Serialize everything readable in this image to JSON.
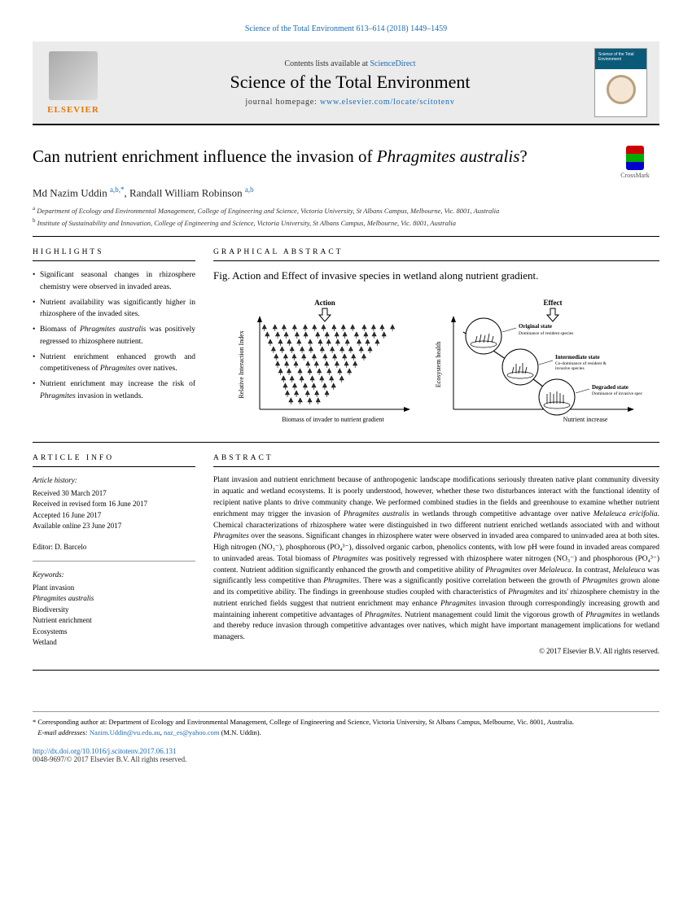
{
  "citation": "Science of the Total Environment 613–614 (2018) 1449–1459",
  "header": {
    "publisher_logo_text": "ELSEVIER",
    "contents_prefix": "Contents lists available at ",
    "contents_link": "ScienceDirect",
    "journal_name": "Science of the Total Environment",
    "homepage_prefix": "journal homepage: ",
    "homepage_url": "www.elsevier.com/locate/scitotenv",
    "cover_label": "Science of the Total Environment"
  },
  "title": {
    "pre": "Can nutrient enrichment influence the invasion of ",
    "species": "Phragmites australis",
    "post": "?"
  },
  "crossmark_label": "CrossMark",
  "authors": {
    "a1_name": "Md Nazim Uddin ",
    "a1_sup": "a,b,*",
    "sep": ", ",
    "a2_name": "Randall William Robinson ",
    "a2_sup": "a,b"
  },
  "affiliations": {
    "a": "Department of Ecology and Environmental Management, College of Engineering and Science, Victoria University, St Albans Campus, Melbourne, Vic. 8001, Australia",
    "b": "Institute of Sustainability and Innovation, College of Engineering and Science, Victoria University, St Albans Campus, Melbourne, Vic. 8001, Australia"
  },
  "sections": {
    "highlights": "HIGHLIGHTS",
    "graphical_abstract": "GRAPHICAL ABSTRACT",
    "article_info": "ARTICLE INFO",
    "abstract": "ABSTRACT"
  },
  "highlights": [
    "Significant seasonal changes in rhizosphere chemistry were observed in invaded areas.",
    "Nutrient availability was significantly higher in rhizosphere of the invaded sites.",
    "Biomass of <em>Phragmites australis</em> was positively regressed to rhizosphere nutrient.",
    "Nutrient enrichment enhanced growth and competitiveness of <em>Phragmites</em> over natives.",
    "Nutrient enrichment may increase the risk of <em>Phragmites</em> invasion in wetlands."
  ],
  "graphical_abstract": {
    "caption": "Fig. Action and Effect of invasive species in wetland along nutrient gradient.",
    "left_axis_y": "Relative Interaction Index",
    "left_axis_x": "Biomass of invader to nutrient gradient",
    "left_top_label": "Action",
    "right_top_label": "Effect",
    "right_axis_y": "Ecosystem health",
    "right_axis_x": "Nutrient increase",
    "state1_title": "Original state",
    "state1_sub": "Dominance of resident species",
    "state2_title": "Intermediate state",
    "state2_sub": "Co-dominance of resident & invasive species",
    "state3_title": "Degraded state",
    "state3_sub": "Dominance of invasive species"
  },
  "article_info": {
    "history_label": "Article history:",
    "received": "Received 30 March 2017",
    "revised": "Received in revised form 16 June 2017",
    "accepted": "Accepted 16 June 2017",
    "online": "Available online 23 June 2017",
    "editor_label": "Editor: ",
    "editor": "D. Barcelo",
    "keywords_label": "Keywords:",
    "keywords": [
      "Plant invasion",
      "Phragmites australis",
      "Biodiversity",
      "Nutrient enrichment",
      "Ecosystems",
      "Wetland"
    ]
  },
  "abstract": "Plant invasion and nutrient enrichment because of anthropogenic landscape modifications seriously threaten native plant community diversity in aquatic and wetland ecosystems. It is poorly understood, however, whether these two disturbances interact with the functional identity of recipient native plants to drive community change. We performed combined studies in the fields and greenhouse to examine whether nutrient enrichment may trigger the invasion of <em>Phragmites australis</em> in wetlands through competitive advantage over native <em>Melaleuca ericifolia</em>. Chemical characterizations of rhizosphere water were distinguished in two different nutrient enriched wetlands associated with and without <em>Phragmites</em> over the seasons. Significant changes in rhizosphere water were observed in invaded area compared to uninvaded area at both sites. High nitrogen (NO₃⁻), phosphorous (PO₄³⁻), dissolved organic carbon, phenolics contents, with low pH were found in invaded areas compared to uninvaded areas. Total biomass of <em>Phragmites</em> was positively regressed with rhizosphere water nitrogen (NO₃⁻) and phosphorous (PO₄³⁻) content. Nutrient addition significantly enhanced the growth and competitive ability of <em>Phragmites</em> over <em>Melaleuca</em>. In contrast, <em>Melaleuca</em> was significantly less competitive than <em>Phragmites</em>. There was a significantly positive correlation between the growth of <em>Phragmites</em> grown alone and its competitive ability. The findings in greenhouse studies coupled with characteristics of <em>Phragmites</em> and its' rhizosphere chemistry in the nutrient enriched fields suggest that nutrient enrichment may enhance <em>Phragmites</em> invasion through correspondingly increasing growth and maintaining inherent competitive advantages of <em>Phragmites</em>. Nutrient management could limit the vigorous growth of <em>Phragmites</em> in wetlands and thereby reduce invasion through competitive advantages over natives, which might have important management implications for wetland managers.",
  "copyright": "© 2017 Elsevier B.V. All rights reserved.",
  "footnotes": {
    "corresponding": "Corresponding author at: Department of Ecology and Environmental Management, College of Engineering and Science, Victoria University, St Albans Campus, Melbourne, Vic. 8001, Australia.",
    "email_label": "E-mail addresses: ",
    "email1": "Nazim.Uddin@vu.edu.au",
    "email_sep": ", ",
    "email2": "naz_es@yahoo.com",
    "email_author": " (M.N. Uddin)."
  },
  "doi": {
    "url": "http://dx.doi.org/10.1016/j.scitotenv.2017.06.131",
    "issn_copyright": "0048-9697/© 2017 Elsevier B.V. All rights reserved."
  },
  "colors": {
    "link": "#1a6bb5",
    "logo": "#ea7600",
    "header_bg": "#ebebeb",
    "text": "#000000"
  }
}
